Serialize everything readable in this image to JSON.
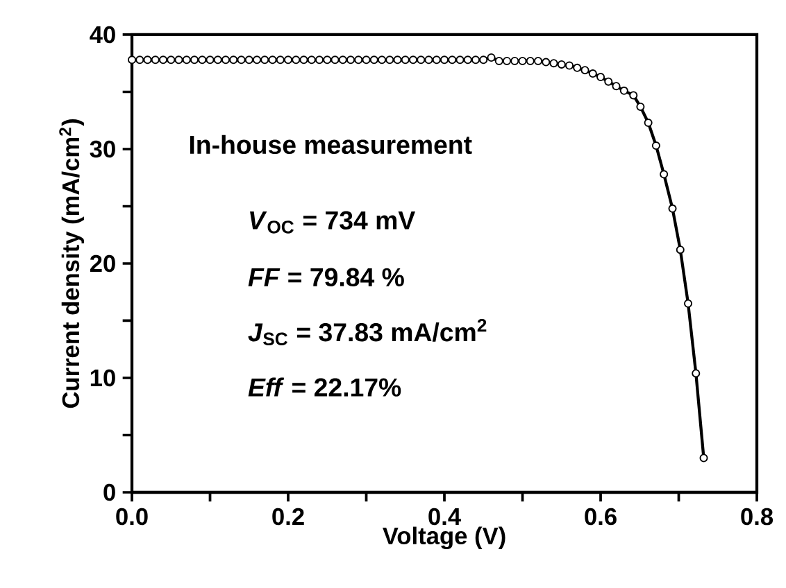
{
  "chart_data": {
    "type": "line",
    "xlabel": "Voltage (V)",
    "ylabel": "Current density (mA/cm$^{2}$)",
    "xlim": [
      0,
      0.8
    ],
    "ylim": [
      0,
      40
    ],
    "xticks": [
      {
        "value": 0,
        "label": "0.0"
      },
      {
        "value": 0.1,
        "label": null
      },
      {
        "value": 0.2,
        "label": "0.2"
      },
      {
        "value": 0.3,
        "label": null
      },
      {
        "value": 0.4,
        "label": "0.4"
      },
      {
        "value": 0.5,
        "label": null
      },
      {
        "value": 0.6,
        "label": "0.6"
      },
      {
        "value": 0.7,
        "label": null
      },
      {
        "value": 0.8,
        "label": "0.8"
      }
    ],
    "yticks": [
      0,
      {
        "value": 5,
        "label": null
      },
      10,
      {
        "value": 15,
        "label": null
      },
      20,
      {
        "value": 25,
        "label": null
      },
      30,
      {
        "value": 35,
        "label": null
      },
      40
    ],
    "marker": "circle",
    "line_style": "solid",
    "annotations": [
      "In-house measurement",
      "*V*$_{OC}$ =  734 mV",
      "*FF*  =  79.84 %",
      "*J*$_{SC}$ =  37.83 mA/cm$^{2}$",
      "*Eff* =   22.17%"
    ],
    "series": [
      {
        "color": "#000000",
        "x": [
          0,
          0.01,
          0.02,
          0.03,
          0.04,
          0.05,
          0.06,
          0.07,
          0.08,
          0.09,
          0.1,
          0.11,
          0.12,
          0.13,
          0.14,
          0.15,
          0.16,
          0.17,
          0.18,
          0.19,
          0.2,
          0.21,
          0.22,
          0.23,
          0.24,
          0.25,
          0.26,
          0.27,
          0.28,
          0.29,
          0.3,
          0.31,
          0.32,
          0.33,
          0.34,
          0.35,
          0.36,
          0.37,
          0.38,
          0.39,
          0.4,
          0.41,
          0.42,
          0.43,
          0.44,
          0.45,
          0.46,
          0.47,
          0.48,
          0.49,
          0.5,
          0.51,
          0.52,
          0.53,
          0.54,
          0.55,
          0.56,
          0.57,
          0.58,
          0.59,
          0.6,
          0.61,
          0.62,
          0.63,
          0.642,
          0.651,
          0.661,
          0.671,
          0.681,
          0.692,
          0.702,
          0.712,
          0.722,
          0.732
        ],
        "values": [
          37.8,
          37.8,
          37.8,
          37.8,
          37.8,
          37.8,
          37.8,
          37.8,
          37.8,
          37.8,
          37.8,
          37.8,
          37.8,
          37.8,
          37.8,
          37.8,
          37.8,
          37.8,
          37.8,
          37.8,
          37.8,
          37.8,
          37.8,
          37.8,
          37.8,
          37.8,
          37.8,
          37.8,
          37.8,
          37.8,
          37.8,
          37.8,
          37.8,
          37.8,
          37.8,
          37.8,
          37.8,
          37.8,
          37.8,
          37.8,
          37.8,
          37.8,
          37.8,
          37.8,
          37.8,
          37.8,
          38.0,
          37.7,
          37.7,
          37.7,
          37.7,
          37.7,
          37.7,
          37.6,
          37.5,
          37.4,
          37.3,
          37.1,
          36.9,
          36.6,
          36.3,
          35.9,
          35.5,
          35.1,
          34.7,
          33.7,
          32.3,
          30.3,
          27.8,
          24.8,
          21.2,
          16.5,
          10.4,
          3.0
        ]
      }
    ]
  }
}
